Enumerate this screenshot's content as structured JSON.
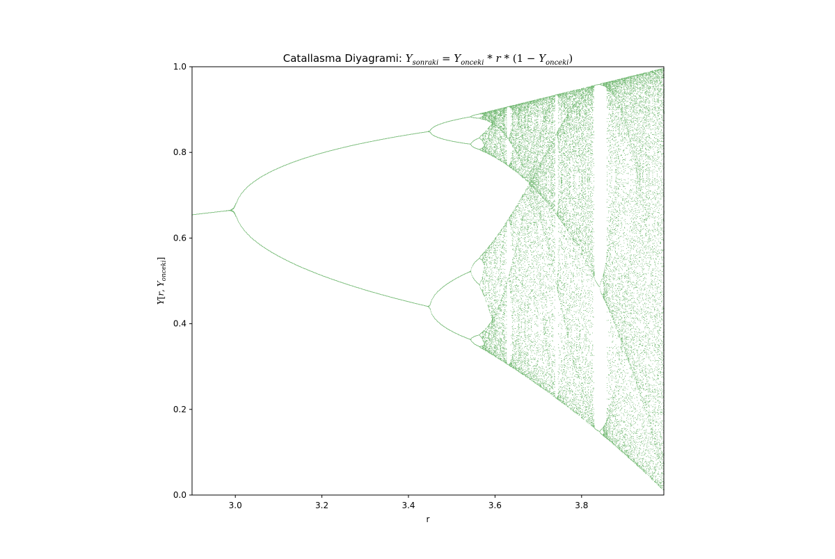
{
  "chart_data": {
    "type": "scatter",
    "title": {
      "prefix": "Catallasma Diyagrami: ",
      "y": "Y",
      "sub_next": "sonraki",
      "eq": " = ",
      "sub_prev": "onceki",
      "times1": " * ",
      "r": "r",
      "times2": " * ",
      "open": "(1 − ",
      "close": ")"
    },
    "xlabel": "r",
    "ylabel": {
      "y": "Y",
      "open": "[",
      "r": "r",
      "comma": ", ",
      "y2": "Y",
      "sub": "onceki",
      "close": "]"
    },
    "xlim": [
      2.9,
      3.99
    ],
    "ylim": [
      0.0,
      1.0
    ],
    "xticks": [
      "3.0",
      "3.2",
      "3.4",
      "3.6",
      "3.8"
    ],
    "xtick_values": [
      3.0,
      3.2,
      3.4,
      3.6,
      3.8
    ],
    "yticks": [
      "0.0",
      "0.2",
      "0.4",
      "0.6",
      "0.8",
      "1.0"
    ],
    "ytick_values": [
      0.0,
      0.2,
      0.4,
      0.6,
      0.8,
      1.0
    ],
    "grid": false,
    "legend": "none",
    "marker_color": "#008000",
    "map": "x_next = r * x * (1 - x)",
    "r_range": [
      2.9,
      3.99
    ]
  }
}
